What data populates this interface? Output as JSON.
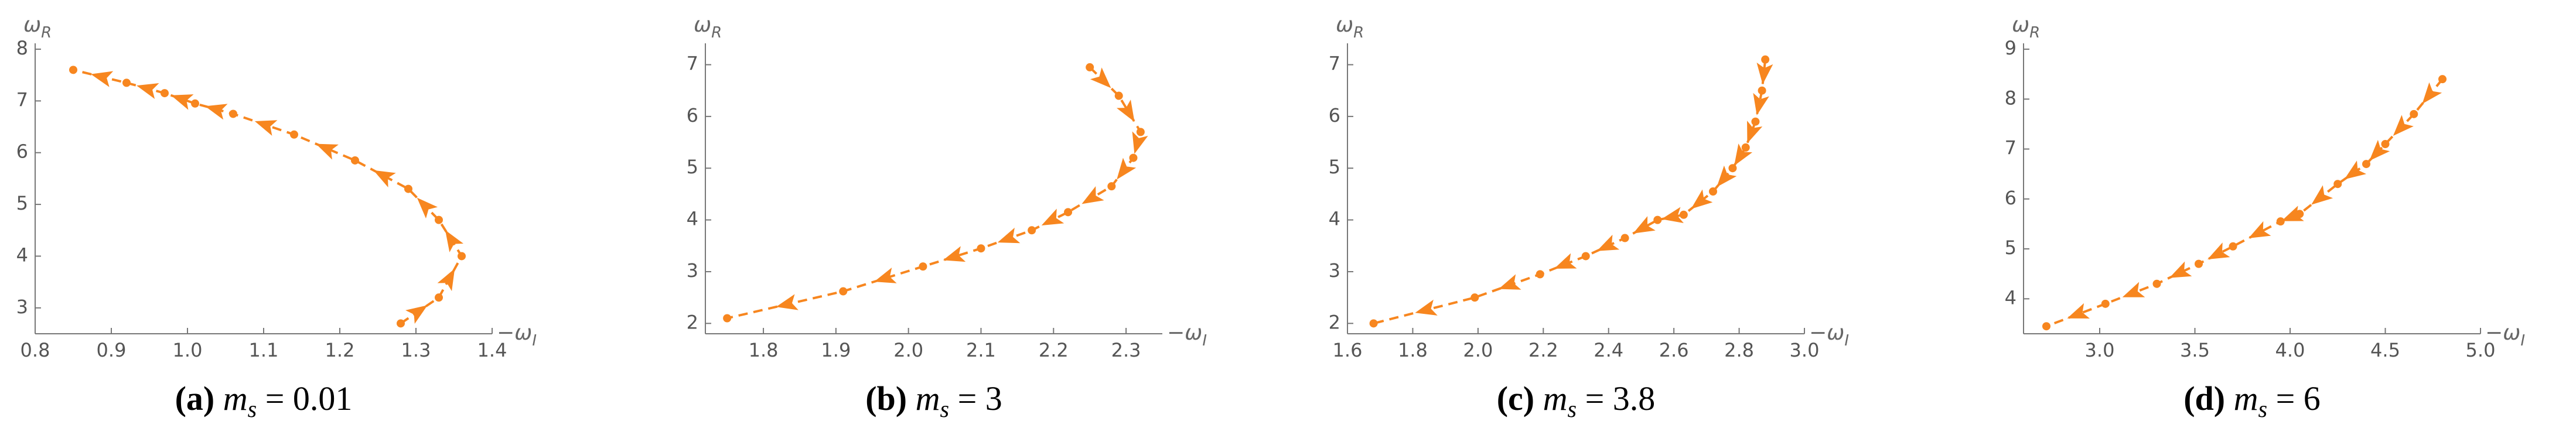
{
  "chart_data": [
    {
      "type": "line",
      "x_label": {
        "base": "−ω",
        "sub": "I"
      },
      "y_label": {
        "base": "ω",
        "sub": "R"
      },
      "caption": {
        "tag": "(a)",
        "var": "m",
        "sub": "s",
        "eq": " = 0.01"
      },
      "color": "#f7861f",
      "dashed": true,
      "x": [
        1.28,
        1.33,
        1.36,
        1.33,
        1.29,
        1.22,
        1.14,
        1.06,
        1.01,
        0.97,
        0.92,
        0.85
      ],
      "values": [
        2.7,
        3.2,
        4.0,
        4.7,
        5.3,
        5.85,
        6.35,
        6.75,
        6.95,
        7.15,
        7.35,
        7.6
      ],
      "xlim": [
        0.8,
        1.4
      ],
      "ylim": [
        2.5,
        8
      ],
      "xticks": [
        0.8,
        0.9,
        {
          "value": 1,
          "label": "1.0"
        },
        1.1,
        1.2,
        1.3,
        1.4
      ],
      "yticks": [
        3,
        4,
        5,
        6,
        7,
        8
      ]
    },
    {
      "type": "line",
      "x_label": {
        "base": "−ω",
        "sub": "I"
      },
      "y_label": {
        "base": "ω",
        "sub": "R"
      },
      "caption": {
        "tag": "(b)",
        "var": "m",
        "sub": "s",
        "eq": " = 3"
      },
      "color": "#f7861f",
      "dashed": true,
      "x": [
        2.25,
        2.29,
        2.32,
        2.31,
        2.28,
        2.22,
        2.17,
        2.1,
        2.02,
        1.91,
        1.75
      ],
      "values": [
        6.95,
        6.4,
        5.7,
        5.2,
        4.65,
        4.15,
        3.8,
        3.45,
        3.1,
        2.62,
        2.1
      ],
      "xlim": [
        1.72,
        2.35
      ],
      "ylim": [
        1.8,
        7.3
      ],
      "xticks": [
        1.8,
        1.9,
        {
          "value": 2,
          "label": "2.0"
        },
        2.1,
        2.2,
        2.3
      ],
      "yticks": [
        2,
        3,
        4,
        5,
        6,
        7
      ]
    },
    {
      "type": "line",
      "x_label": {
        "base": "−ω",
        "sub": "I"
      },
      "y_label": {
        "base": "ω",
        "sub": "R"
      },
      "caption": {
        "tag": "(c)",
        "var": "m",
        "sub": "s",
        "eq": " = 3.8"
      },
      "color": "#f7861f",
      "dashed": true,
      "x": [
        2.88,
        2.87,
        2.85,
        2.82,
        2.78,
        2.72,
        2.63,
        2.55,
        2.45,
        2.33,
        2.19,
        1.99,
        1.68
      ],
      "values": [
        7.1,
        6.5,
        5.9,
        5.4,
        5.0,
        4.55,
        4.1,
        4.0,
        3.65,
        3.3,
        2.95,
        2.5,
        2.0
      ],
      "xlim": [
        1.6,
        3.0
      ],
      "ylim": [
        1.8,
        7.3
      ],
      "xticks": [
        1.6,
        1.8,
        {
          "value": 2,
          "label": "2.0"
        },
        2.2,
        2.4,
        2.6,
        2.8,
        {
          "value": 3,
          "label": "3.0"
        }
      ],
      "yticks": [
        2,
        3,
        4,
        5,
        6,
        7
      ]
    },
    {
      "type": "line",
      "x_label": {
        "base": "−ω",
        "sub": "I"
      },
      "y_label": {
        "base": "ω",
        "sub": "R"
      },
      "caption": {
        "tag": "(d)",
        "var": "m",
        "sub": "s",
        "eq": " = 6"
      },
      "color": "#f7861f",
      "dashed": true,
      "x": [
        4.8,
        4.65,
        4.5,
        4.4,
        4.25,
        4.05,
        3.95,
        3.7,
        3.52,
        3.3,
        3.03,
        2.72
      ],
      "values": [
        8.4,
        7.7,
        7.1,
        6.7,
        6.3,
        5.7,
        5.55,
        5.05,
        4.7,
        4.3,
        3.9,
        3.45
      ],
      "xlim": [
        2.6,
        5.0
      ],
      "ylim": [
        3.3,
        9
      ],
      "xticks": [
        {
          "value": 3,
          "label": "3.0"
        },
        3.5,
        {
          "value": 4,
          "label": "4.0"
        },
        4.5,
        {
          "value": 5,
          "label": "5.0"
        }
      ],
      "yticks": [
        4,
        5,
        6,
        7,
        8,
        9
      ]
    }
  ]
}
